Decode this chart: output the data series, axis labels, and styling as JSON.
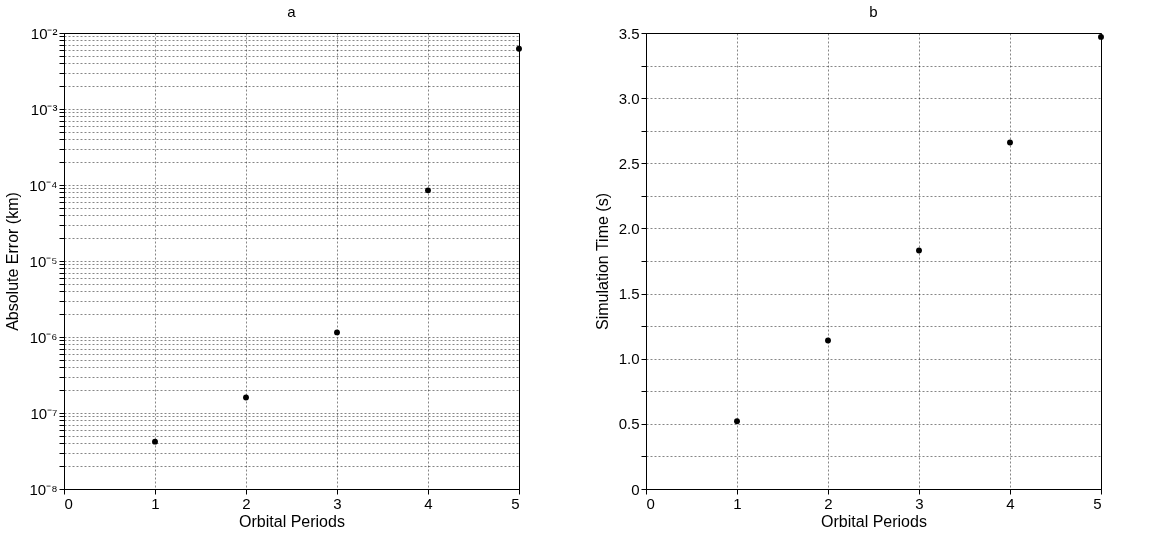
{
  "chart_data": [
    {
      "type": "scatter",
      "title": "a",
      "xlabel": "Orbital Periods",
      "ylabel": "Absolute Error (km)",
      "log": "y",
      "grid": true,
      "marker": "circle",
      "x": [
        1,
        2,
        3,
        4,
        5
      ],
      "values": [
        4.2e-08,
        1.6e-07,
        1.15e-06,
        8.5e-05,
        0.0062
      ],
      "color": "#000000",
      "xlim": [
        0,
        5
      ],
      "xticks": [
        0,
        1,
        2,
        3,
        4,
        5
      ],
      "ylim": [
        1e-08,
        0.01
      ],
      "yticks": [
        {
          "value": 1e-08,
          "label": "10⁻⁸"
        },
        {
          "value": 2e-08,
          "label": null
        },
        {
          "value": 3e-08,
          "label": null
        },
        {
          "value": 4e-08,
          "label": null
        },
        {
          "value": 5e-08,
          "label": null
        },
        {
          "value": 6e-08,
          "label": null
        },
        {
          "value": 7e-08,
          "label": null
        },
        {
          "value": 8e-08,
          "label": null
        },
        {
          "value": 9e-08,
          "label": null
        },
        {
          "value": 1e-07,
          "label": "10⁻⁷"
        },
        {
          "value": 2e-07,
          "label": null
        },
        {
          "value": 3e-07,
          "label": null
        },
        {
          "value": 4e-07,
          "label": null
        },
        {
          "value": 5e-07,
          "label": null
        },
        {
          "value": 6e-07,
          "label": null
        },
        {
          "value": 7e-07,
          "label": null
        },
        {
          "value": 8e-07,
          "label": null
        },
        {
          "value": 9e-07,
          "label": null
        },
        {
          "value": 1e-06,
          "label": "10⁻⁶"
        },
        {
          "value": 2e-06,
          "label": null
        },
        {
          "value": 3e-06,
          "label": null
        },
        {
          "value": 4e-06,
          "label": null
        },
        {
          "value": 5e-06,
          "label": null
        },
        {
          "value": 6e-06,
          "label": null
        },
        {
          "value": 7e-06,
          "label": null
        },
        {
          "value": 8e-06,
          "label": null
        },
        {
          "value": 9e-06,
          "label": null
        },
        {
          "value": 1e-05,
          "label": "10⁻⁵"
        },
        {
          "value": 2e-05,
          "label": null
        },
        {
          "value": 3e-05,
          "label": null
        },
        {
          "value": 4e-05,
          "label": null
        },
        {
          "value": 5e-05,
          "label": null
        },
        {
          "value": 6e-05,
          "label": null
        },
        {
          "value": 7e-05,
          "label": null
        },
        {
          "value": 8e-05,
          "label": null
        },
        {
          "value": 9e-05,
          "label": null
        },
        {
          "value": 0.0001,
          "label": "10⁻⁴"
        },
        {
          "value": 0.0002,
          "label": null
        },
        {
          "value": 0.0003,
          "label": null
        },
        {
          "value": 0.0004,
          "label": null
        },
        {
          "value": 0.0005,
          "label": null
        },
        {
          "value": 0.0006,
          "label": null
        },
        {
          "value": 0.0007,
          "label": null
        },
        {
          "value": 0.0008,
          "label": null
        },
        {
          "value": 0.0009,
          "label": null
        },
        {
          "value": 0.001,
          "label": "10⁻³"
        },
        {
          "value": 0.002,
          "label": null
        },
        {
          "value": 0.003,
          "label": null
        },
        {
          "value": 0.004,
          "label": null
        },
        {
          "value": 0.005,
          "label": null
        },
        {
          "value": 0.006,
          "label": null
        },
        {
          "value": 0.007,
          "label": null
        },
        {
          "value": 0.008,
          "label": null
        },
        {
          "value": 0.009,
          "label": null
        },
        {
          "value": 0.01,
          "label": "10⁻²"
        }
      ]
    },
    {
      "type": "scatter",
      "title": "b",
      "xlabel": "Orbital Periods",
      "ylabel": "Simulation Time (s)",
      "grid": true,
      "marker": "circle",
      "x": [
        1,
        2,
        3,
        4,
        5
      ],
      "values": [
        0.52,
        1.14,
        1.83,
        2.66,
        3.47
      ],
      "color": "#000000",
      "xlim": [
        0,
        5
      ],
      "xticks": [
        0,
        1,
        2,
        3,
        4,
        5
      ],
      "ylim": [
        0,
        3.5
      ],
      "yticks": [
        0,
        {
          "value": 0.25,
          "label": null
        },
        0.5,
        {
          "value": 0.75,
          "label": null
        },
        {
          "value": 1,
          "label": "1.0"
        },
        {
          "value": 1.25,
          "label": null
        },
        1.5,
        {
          "value": 1.75,
          "label": null
        },
        {
          "value": 2,
          "label": "2.0"
        },
        {
          "value": 2.25,
          "label": null
        },
        2.5,
        {
          "value": 2.75,
          "label": null
        },
        {
          "value": 3,
          "label": "3.0"
        },
        {
          "value": 3.25,
          "label": null
        },
        3.5
      ]
    }
  ]
}
